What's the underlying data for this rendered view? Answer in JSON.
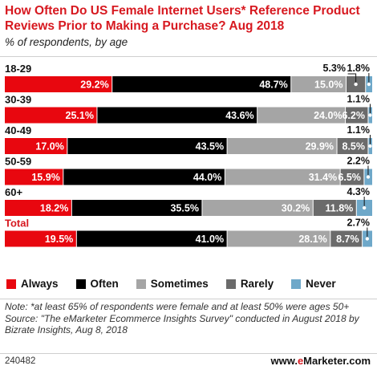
{
  "title": "How Often Do US Female Internet Users* Reference Product Reviews Prior to Making a Purchase? Aug 2018",
  "subtitle": "% of respondents, by age",
  "legend": [
    {
      "label": "Always",
      "color": "#e8070f"
    },
    {
      "label": "Often",
      "color": "#000000"
    },
    {
      "label": "Sometimes",
      "color": "#a5a5a5"
    },
    {
      "label": "Rarely",
      "color": "#6b6b6b"
    },
    {
      "label": "Never",
      "color": "#6ea8c9"
    }
  ],
  "chart_data": {
    "type": "bar",
    "stacked": true,
    "orientation": "horizontal",
    "categories": [
      "18-29",
      "30-39",
      "40-49",
      "50-59",
      "60+",
      "Total"
    ],
    "series": [
      {
        "name": "Always",
        "values": [
          29.2,
          25.1,
          17.0,
          15.9,
          18.2,
          19.5
        ]
      },
      {
        "name": "Often",
        "values": [
          48.7,
          43.6,
          43.5,
          44.0,
          35.5,
          41.0
        ]
      },
      {
        "name": "Sometimes",
        "values": [
          15.0,
          24.0,
          29.9,
          31.4,
          30.2,
          28.1
        ]
      },
      {
        "name": "Rarely",
        "values": [
          5.3,
          6.2,
          8.5,
          6.5,
          11.8,
          8.7
        ]
      },
      {
        "name": "Never",
        "values": [
          1.8,
          1.1,
          1.1,
          2.2,
          4.3,
          2.7
        ]
      }
    ],
    "xlim": [
      0,
      100
    ],
    "legend_position": "bottom"
  },
  "note": "Note: *at least 65% of respondents were female and at least 50% were ages 50+",
  "source": "Source: \"The eMarketer Ecommerce Insights Survey\" conducted in August 2018 by Bizrate Insights, Aug 8, 2018",
  "chart_id": "240482",
  "brand": {
    "prefix": "www.",
    "e": "e",
    "rest": "Marketer",
    "suffix": ".com"
  }
}
